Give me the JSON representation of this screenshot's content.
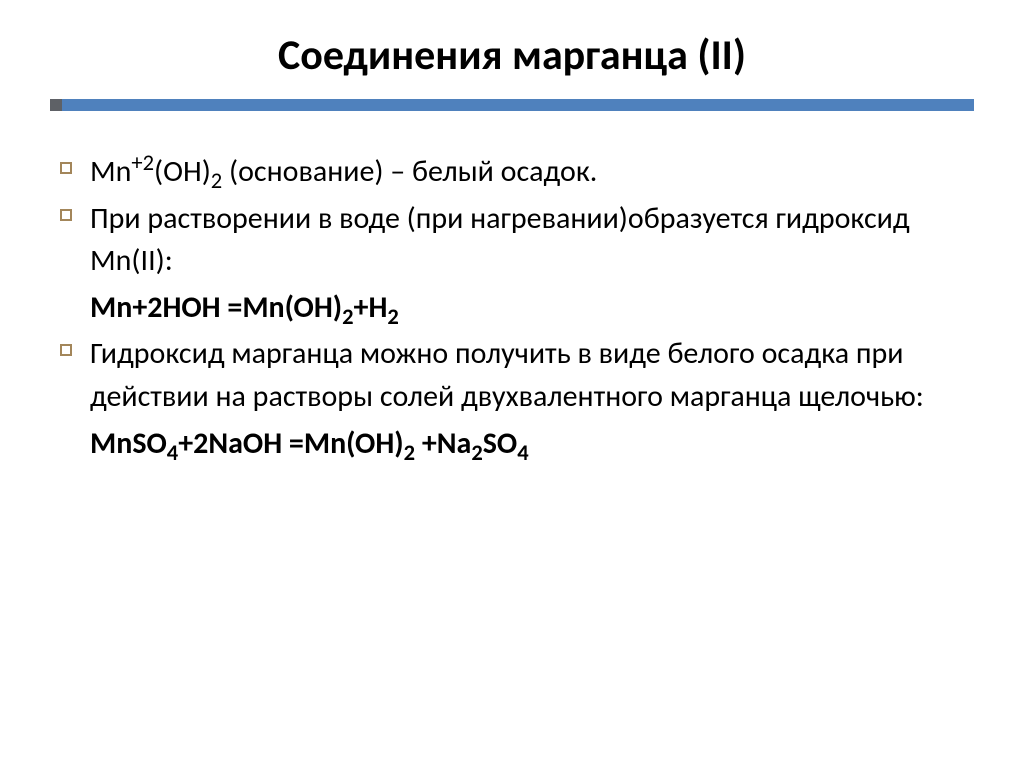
{
  "title": "Соединения марганца (II)",
  "title_fontsize": 42,
  "body_fontsize": 30,
  "colors": {
    "divider_square": "#5e6166",
    "divider_bar": "#4f81bd",
    "bullet_border": "#a3865a",
    "text": "#000000",
    "background": "#ffffff"
  },
  "lines": [
    {
      "bullet": true,
      "html": "Mn<span class='sup'>+2</span>(OH)<span class='sub'>2</span>  (основание) – белый осадок."
    },
    {
      "bullet": true,
      "html": "При растворении в воде (при нагревании)образуется гидроксид Mn(II):"
    },
    {
      "bullet": false,
      "html": "<b>Mn+2HOH =Mn(OH)</b><span class='sub'><b>2</b></span><b>+H</b><span class='sub'><b>2</b></span>"
    },
    {
      "bullet": true,
      "html": "Гидроксид марганца можно получить в виде белого осадка при действии на растворы солей двухвалентного марганца щелочью:"
    },
    {
      "bullet": false,
      "html": "<b>MnSO</b><span class='sub'><b>4</b></span><b>+2NaOH =Mn(OH)</b><span class='sub'><b>2</b></span><b> +Na</b><span class='sub'><b>2</b></span><b>SO</b><span class='sub'><b>4</b></span>"
    }
  ]
}
